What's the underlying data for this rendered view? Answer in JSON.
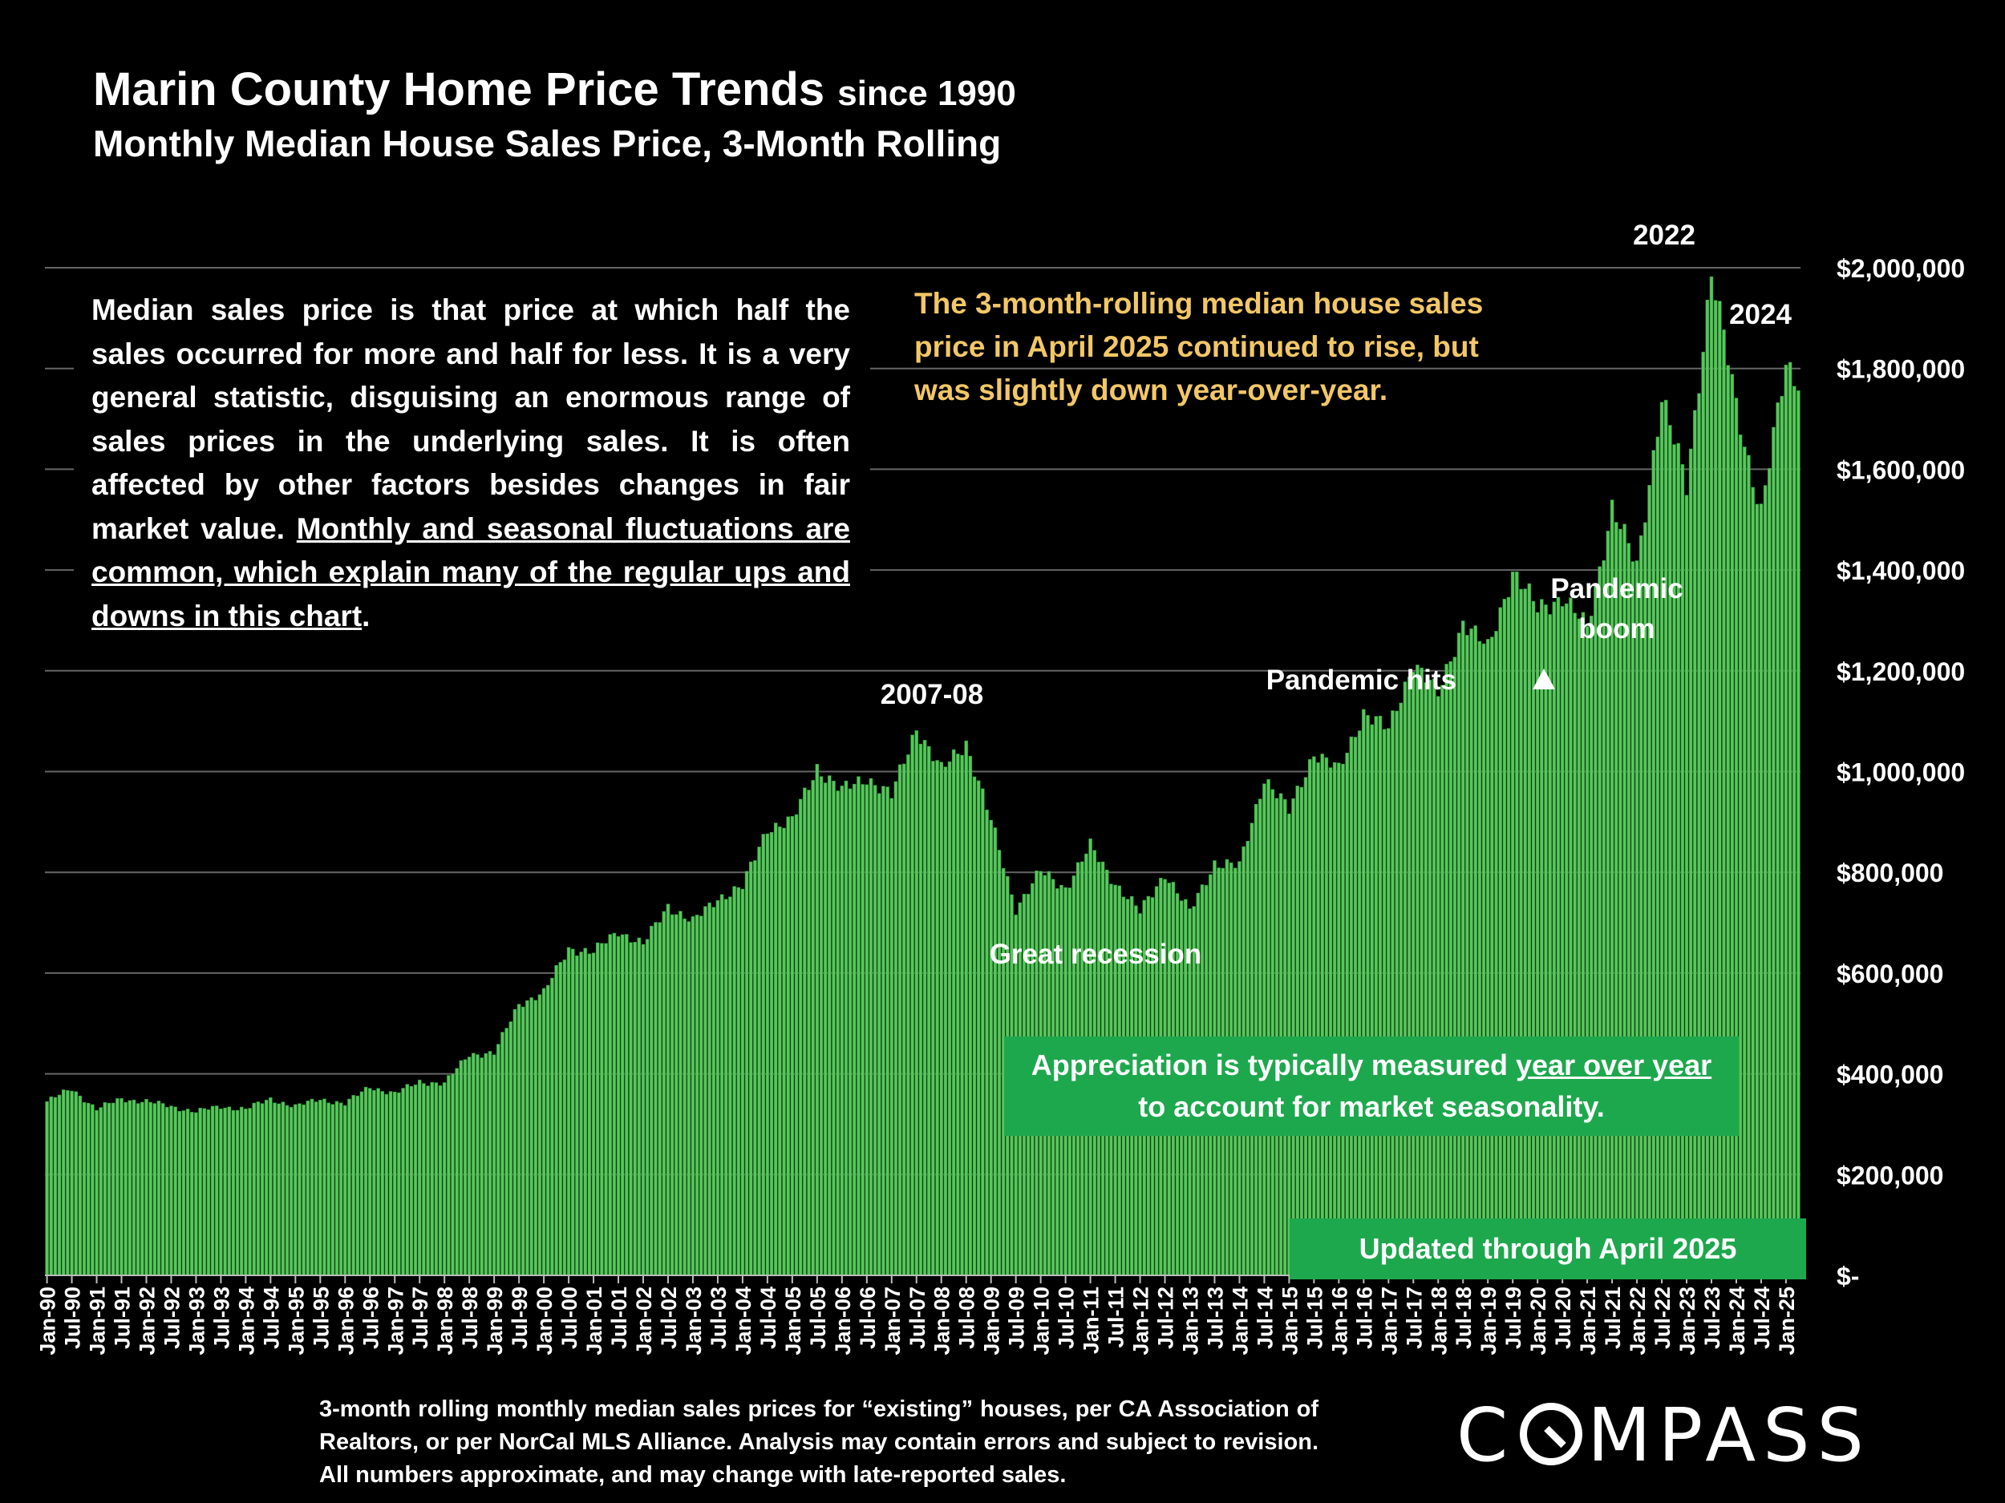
{
  "title": {
    "main": "Marin County Home Price Trends",
    "since": "since 1990"
  },
  "subtitle": "Monthly Median House Sales Price, 3-Month Rolling",
  "description": {
    "plain": "Median sales price is that price at which half the sales occurred for more and half for less. It is a very general statistic, disguising an enormous range of sales prices in the underlying sales. It is often affected by other factors besides changes in fair market value.",
    "underlined": "Monthly and seasonal fluctuations are common, which explain many of the regular ups and downs in this chart",
    "end": "."
  },
  "callout": "The 3-month-rolling median house sales price in April 2025 continued to rise, but was slightly down year-over-year.",
  "appreciation": {
    "pre": "Appreciation is typically measured ",
    "underlined": "year over year",
    "post": "to account for market seasonality."
  },
  "updated": "Updated through April 2025",
  "source": "3-month rolling monthly median sales prices for “existing” houses, per CA Association of Realtors, or per NorCal MLS Alliance. Analysis may contain errors and subject to revision. All numbers approximate, and may change with late-reported sales.",
  "logo": {
    "before": "C",
    "after": "MPASS"
  },
  "colors": {
    "bar": "#57c75a",
    "bar_edge": "#2e8f3a",
    "grid": "#666666",
    "callout": "#f2c766",
    "box": "#1ea84e"
  },
  "chart_data": {
    "type": "bar",
    "start_month": "Jan-90",
    "end_month": "Apr-25",
    "y_ticks": [
      "$-",
      "$200,000",
      "$400,000",
      "$600,000",
      "$800,000",
      "$1,000,000",
      "$1,200,000",
      "$1,400,000",
      "$1,600,000",
      "$1,800,000",
      "$2,000,000"
    ],
    "ylim": [
      0,
      2000000
    ],
    "x_tick_labels": [
      "Jan-90",
      "Jul-90",
      "Jan-91",
      "Jul-91",
      "Jan-92",
      "Jul-92",
      "Jan-93",
      "Jul-93",
      "Jan-94",
      "Jul-94",
      "Jan-95",
      "Jul-95",
      "Jan-96",
      "Jul-96",
      "Jan-97",
      "Jul-97",
      "Jan-98",
      "Jul-98",
      "Jan-99",
      "Jul-99",
      "Jan-00",
      "Jul-00",
      "Jan-01",
      "Jul-01",
      "Jan-02",
      "Jul-02",
      "Jan-03",
      "Jul-03",
      "Jan-04",
      "Jul-04",
      "Jan-05",
      "Jul-05",
      "Jan-06",
      "Jul-06",
      "Jan-07",
      "Jul-07",
      "Jan-08",
      "Jul-08",
      "Jan-09",
      "Jul-09",
      "Jan-10",
      "Jul-10",
      "Jan-11",
      "Jul-11",
      "Jan-12",
      "Jul-12",
      "Jan-13",
      "Jul-13",
      "Jan-14",
      "Jul-14",
      "Jan-15",
      "Jul-15",
      "Jan-16",
      "Jul-16",
      "Jan-17",
      "Jul-17",
      "Jan-18",
      "Jul-18",
      "Jan-19",
      "Jul-19",
      "Jan-20",
      "Jul-20",
      "Jan-21",
      "Jul-21",
      "Jan-22",
      "Jul-22",
      "Jan-23",
      "Jul-23",
      "Jan-24",
      "Jul-24",
      "Jan-25"
    ],
    "anchors": [
      [
        "Jan-90",
        345000
      ],
      [
        "Jul-90",
        370000
      ],
      [
        "Jan-91",
        330000
      ],
      [
        "Jul-91",
        350000
      ],
      [
        "Jan-92",
        345000
      ],
      [
        "Jul-92",
        335000
      ],
      [
        "Jan-93",
        325000
      ],
      [
        "Jul-93",
        335000
      ],
      [
        "Jan-94",
        330000
      ],
      [
        "Jul-94",
        350000
      ],
      [
        "Jan-95",
        335000
      ],
      [
        "Jul-95",
        350000
      ],
      [
        "Jan-96",
        340000
      ],
      [
        "Jul-96",
        375000
      ],
      [
        "Jan-97",
        360000
      ],
      [
        "Jul-97",
        385000
      ],
      [
        "Jan-98",
        380000
      ],
      [
        "Jul-98",
        440000
      ],
      [
        "Jan-99",
        440000
      ],
      [
        "Jul-99",
        540000
      ],
      [
        "Jan-00",
        560000
      ],
      [
        "Jul-00",
        650000
      ],
      [
        "Jan-01",
        640000
      ],
      [
        "Jul-01",
        685000
      ],
      [
        "Jan-02",
        655000
      ],
      [
        "Jul-02",
        735000
      ],
      [
        "Jan-03",
        700000
      ],
      [
        "Jul-03",
        750000
      ],
      [
        "Jan-04",
        770000
      ],
      [
        "Jul-04",
        890000
      ],
      [
        "Jan-05",
        900000
      ],
      [
        "Jul-05",
        1010000
      ],
      [
        "Jan-06",
        960000
      ],
      [
        "Jul-06",
        990000
      ],
      [
        "Jan-07",
        950000
      ],
      [
        "Jul-07",
        1090000
      ],
      [
        "Jan-08",
        1000000
      ],
      [
        "Jul-08",
        1060000
      ],
      [
        "Jan-09",
        900000
      ],
      [
        "Jul-09",
        730000
      ],
      [
        "Jan-10",
        800000
      ],
      [
        "Jul-10",
        770000
      ],
      [
        "Jan-11",
        850000
      ],
      [
        "Jul-11",
        780000
      ],
      [
        "Jan-12",
        720000
      ],
      [
        "Jul-12",
        800000
      ],
      [
        "Jan-13",
        720000
      ],
      [
        "Jul-13",
        820000
      ],
      [
        "Jan-14",
        810000
      ],
      [
        "Jul-14",
        990000
      ],
      [
        "Jan-15",
        920000
      ],
      [
        "Jul-15",
        1040000
      ],
      [
        "Jan-16",
        1000000
      ],
      [
        "Jul-16",
        1120000
      ],
      [
        "Jan-17",
        1080000
      ],
      [
        "Jul-17",
        1220000
      ],
      [
        "Jan-18",
        1150000
      ],
      [
        "Jul-18",
        1300000
      ],
      [
        "Jan-19",
        1240000
      ],
      [
        "Jul-19",
        1400000
      ],
      [
        "Jan-20",
        1320000
      ],
      [
        "Jul-20",
        1350000
      ],
      [
        "Jan-21",
        1280000
      ],
      [
        "Jul-21",
        1530000
      ],
      [
        "Jan-22",
        1400000
      ],
      [
        "Jul-22",
        1750000
      ],
      [
        "Jan-23",
        1560000
      ],
      [
        "Jul-23",
        2000000
      ],
      [
        "Jan-24",
        1720000
      ],
      [
        "Jul-24",
        1520000
      ],
      [
        "Jan-25",
        1800000
      ],
      [
        "Apr-25",
        1780000
      ]
    ]
  },
  "annotations": {
    "y2007": "2007-08",
    "recession": "Great recession",
    "pandemic_hits": "Pandemic hits",
    "pandemic_boom_1": "Pandemic",
    "pandemic_boom_2": "boom",
    "y2022": "2022",
    "y2024": "2024"
  }
}
